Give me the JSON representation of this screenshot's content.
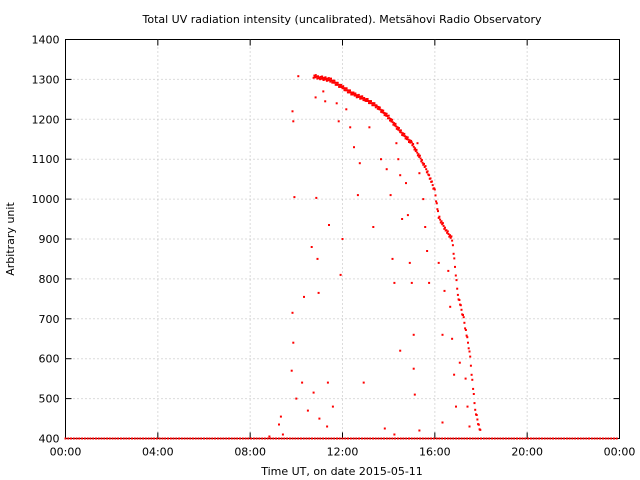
{
  "chart_data": {
    "type": "scatter",
    "title": "Total UV radiation intensity (uncalibrated). Metsähovi Radio Observatory",
    "xlabel": "Time UT, on date 2015-05-11",
    "ylabel": "Arbitrary unit",
    "xlim": [
      "00:00",
      "24:00"
    ],
    "ylim": [
      400,
      1400
    ],
    "x_ticks": [
      "00:00",
      "04:00",
      "08:00",
      "12:00",
      "16:00",
      "20:00",
      "00:00"
    ],
    "y_ticks": [
      "400",
      "500",
      "600",
      "700",
      "800",
      "900",
      "1000",
      "1100",
      "1200",
      "1300",
      "1400"
    ],
    "grid": true,
    "color": "#ff0000",
    "baseline_value": 400,
    "upper_envelope": [
      [
        "10:45",
        1308
      ],
      [
        "11:00",
        1305
      ],
      [
        "11:30",
        1298
      ],
      [
        "12:00",
        1280
      ],
      [
        "12:30",
        1262
      ],
      [
        "13:00",
        1250
      ],
      [
        "13:30",
        1232
      ],
      [
        "14:00",
        1205
      ],
      [
        "14:30",
        1170
      ],
      [
        "15:00",
        1140
      ],
      [
        "15:30",
        1090
      ],
      [
        "15:45",
        1060
      ],
      [
        "16:00",
        1020
      ],
      [
        "16:10",
        955
      ],
      [
        "16:30",
        920
      ],
      [
        "16:45",
        900
      ],
      [
        "17:00",
        760
      ],
      [
        "17:15",
        700
      ],
      [
        "17:30",
        620
      ],
      [
        "17:45",
        470
      ],
      [
        "18:00",
        410
      ]
    ],
    "points": [
      [
        "09:50",
        1220
      ],
      [
        "09:52",
        1195
      ],
      [
        "09:55",
        1005
      ],
      [
        "09:50",
        715
      ],
      [
        "09:52",
        640
      ],
      [
        "09:48",
        570
      ],
      [
        "10:05",
        1308
      ],
      [
        "10:20",
        755
      ],
      [
        "10:40",
        880
      ],
      [
        "10:50",
        1255
      ],
      [
        "10:52",
        1003
      ],
      [
        "10:55",
        850
      ],
      [
        "10:58",
        765
      ],
      [
        "11:10",
        1270
      ],
      [
        "11:15",
        1245
      ],
      [
        "11:25",
        935
      ],
      [
        "11:22",
        540
      ],
      [
        "11:35",
        480
      ],
      [
        "11:45",
        1240
      ],
      [
        "11:50",
        1195
      ],
      [
        "11:55",
        810
      ],
      [
        "12:00",
        900
      ],
      [
        "12:10",
        1225
      ],
      [
        "12:20",
        1180
      ],
      [
        "12:30",
        1130
      ],
      [
        "12:40",
        1010
      ],
      [
        "12:45",
        1090
      ],
      [
        "12:55",
        540
      ],
      [
        "13:10",
        1180
      ],
      [
        "13:20",
        930
      ],
      [
        "13:40",
        1100
      ],
      [
        "13:55",
        1075
      ],
      [
        "14:05",
        1010
      ],
      [
        "14:10",
        850
      ],
      [
        "14:15",
        790
      ],
      [
        "14:20",
        1140
      ],
      [
        "14:25",
        1100
      ],
      [
        "14:30",
        1060
      ],
      [
        "14:35",
        950
      ],
      [
        "14:30",
        620
      ],
      [
        "14:45",
        1040
      ],
      [
        "14:50",
        960
      ],
      [
        "14:55",
        840
      ],
      [
        "15:00",
        790
      ],
      [
        "15:05",
        660
      ],
      [
        "15:05",
        575
      ],
      [
        "15:08",
        510
      ],
      [
        "15:15",
        1140
      ],
      [
        "15:20",
        1065
      ],
      [
        "15:30",
        1000
      ],
      [
        "15:35",
        930
      ],
      [
        "15:40",
        870
      ],
      [
        "15:45",
        790
      ],
      [
        "16:10",
        840
      ],
      [
        "16:20",
        660
      ],
      [
        "16:20",
        440
      ],
      [
        "16:25",
        770
      ],
      [
        "16:35",
        820
      ],
      [
        "16:40",
        730
      ],
      [
        "16:45",
        650
      ],
      [
        "16:50",
        560
      ],
      [
        "16:55",
        480
      ],
      [
        "17:05",
        590
      ],
      [
        "17:20",
        550
      ],
      [
        "17:25",
        480
      ],
      [
        "17:30",
        430
      ],
      [
        "10:00",
        500
      ],
      [
        "10:15",
        540
      ],
      [
        "10:30",
        470
      ],
      [
        "10:45",
        515
      ],
      [
        "11:00",
        450
      ],
      [
        "11:20",
        430
      ],
      [
        "09:20",
        455
      ],
      [
        "09:15",
        435
      ],
      [
        "09:25",
        410
      ],
      [
        "08:50",
        405
      ],
      [
        "13:50",
        425
      ],
      [
        "14:15",
        410
      ],
      [
        "15:20",
        420
      ]
    ]
  }
}
